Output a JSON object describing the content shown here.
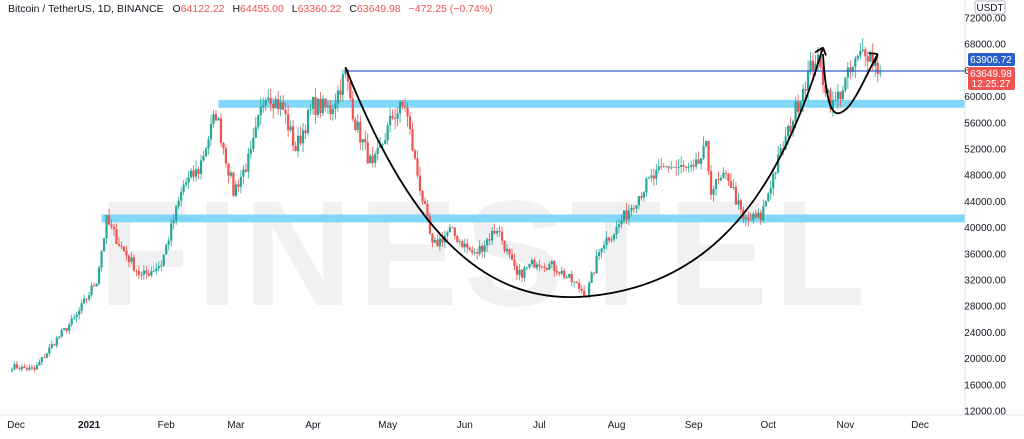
{
  "header": {
    "symbol": "Bitcoin / TetherUS, 1D, BINANCE",
    "open_label": "O",
    "open_value": "64122.22",
    "high_label": "H",
    "high_value": "64455.00",
    "low_label": "L",
    "low_value": "63360.22",
    "close_label": "C",
    "close_value": "63649.98",
    "change": "−472.25 (−0.74%)"
  },
  "watermark": "FINESTEL",
  "currency_label": "USDT",
  "badges": {
    "resistance_price": "63906.72",
    "last_price": "63649.98",
    "countdown": "12:25:27"
  },
  "colors": {
    "up": "#26a69a",
    "down": "#ef5350",
    "zone": "#7fd8f8",
    "hline": "#2a5fc7",
    "badge_resistance": "#2a5fc7",
    "badge_price": "#ef5350"
  },
  "chart_data": {
    "type": "candlestick",
    "ylim": [
      12000,
      72000
    ],
    "x_axis": [
      {
        "label": "Dec",
        "date": "2020-12-01",
        "bold": false
      },
      {
        "label": "2021",
        "date": "2021-01-01",
        "bold": true
      },
      {
        "label": "Feb",
        "date": "2021-02-01",
        "bold": false
      },
      {
        "label": "Mar",
        "date": "2021-03-01",
        "bold": false
      },
      {
        "label": "Apr",
        "date": "2021-04-01",
        "bold": false
      },
      {
        "label": "May",
        "date": "2021-05-01",
        "bold": false
      },
      {
        "label": "Jun",
        "date": "2021-06-01",
        "bold": false
      },
      {
        "label": "Jul",
        "date": "2021-07-01",
        "bold": false
      },
      {
        "label": "Aug",
        "date": "2021-08-01",
        "bold": false
      },
      {
        "label": "Sep",
        "date": "2021-09-01",
        "bold": false
      },
      {
        "label": "Oct",
        "date": "2021-10-01",
        "bold": false
      },
      {
        "label": "Nov",
        "date": "2021-11-01",
        "bold": false
      },
      {
        "label": "Dec",
        "date": "2021-12-01",
        "bold": false
      }
    ],
    "y_ticks": [
      "72000.00",
      "68000.00",
      "64000.00",
      "60000.00",
      "56000.00",
      "52000.00",
      "48000.00",
      "44000.00",
      "40000.00",
      "36000.00",
      "32000.00",
      "28000.00",
      "24000.00",
      "20000.00",
      "16000.00",
      "12000.00"
    ],
    "y_tick_values": [
      72000,
      68000,
      64000,
      60000,
      56000,
      52000,
      48000,
      44000,
      40000,
      36000,
      32000,
      28000,
      24000,
      20000,
      16000,
      12000
    ],
    "series": [
      {
        "date": "2020-12-01",
        "close": 18800
      },
      {
        "date": "2020-12-10",
        "close": 18300
      },
      {
        "date": "2020-12-18",
        "close": 22500
      },
      {
        "date": "2020-12-27",
        "close": 26500
      },
      {
        "date": "2021-01-04",
        "close": 32000
      },
      {
        "date": "2021-01-08",
        "close": 41000
      },
      {
        "date": "2021-01-14",
        "close": 37000
      },
      {
        "date": "2021-01-22",
        "close": 32500
      },
      {
        "date": "2021-01-30",
        "close": 34500
      },
      {
        "date": "2021-02-08",
        "close": 46500
      },
      {
        "date": "2021-02-14",
        "close": 48800
      },
      {
        "date": "2021-02-21",
        "close": 57500
      },
      {
        "date": "2021-02-28",
        "close": 45500
      },
      {
        "date": "2021-03-07",
        "close": 51000
      },
      {
        "date": "2021-03-13",
        "close": 61000
      },
      {
        "date": "2021-03-20",
        "close": 58000
      },
      {
        "date": "2021-03-25",
        "close": 52000
      },
      {
        "date": "2021-04-01",
        "close": 58700
      },
      {
        "date": "2021-04-08",
        "close": 58000
      },
      {
        "date": "2021-04-14",
        "close": 63500
      },
      {
        "date": "2021-04-18",
        "close": 56000
      },
      {
        "date": "2021-04-25",
        "close": 49000
      },
      {
        "date": "2021-05-03",
        "close": 57000
      },
      {
        "date": "2021-05-08",
        "close": 58800
      },
      {
        "date": "2021-05-12",
        "close": 50000
      },
      {
        "date": "2021-05-19",
        "close": 37000
      },
      {
        "date": "2021-05-26",
        "close": 39500
      },
      {
        "date": "2021-06-05",
        "close": 35800
      },
      {
        "date": "2021-06-14",
        "close": 40000
      },
      {
        "date": "2021-06-22",
        "close": 32500
      },
      {
        "date": "2021-06-30",
        "close": 35000
      },
      {
        "date": "2021-07-08",
        "close": 33800
      },
      {
        "date": "2021-07-20",
        "close": 29800
      },
      {
        "date": "2021-07-26",
        "close": 37500
      },
      {
        "date": "2021-08-01",
        "close": 39800
      },
      {
        "date": "2021-08-08",
        "close": 44000
      },
      {
        "date": "2021-08-14",
        "close": 47000
      },
      {
        "date": "2021-08-22",
        "close": 49500
      },
      {
        "date": "2021-09-01",
        "close": 48500
      },
      {
        "date": "2021-09-06",
        "close": 52000
      },
      {
        "date": "2021-09-08",
        "close": 46000
      },
      {
        "date": "2021-09-15",
        "close": 47800
      },
      {
        "date": "2021-09-21",
        "close": 41000
      },
      {
        "date": "2021-09-28",
        "close": 41600
      },
      {
        "date": "2021-10-03",
        "close": 48000
      },
      {
        "date": "2021-10-09",
        "close": 54500
      },
      {
        "date": "2021-10-15",
        "close": 61500
      },
      {
        "date": "2021-10-20",
        "close": 66000
      },
      {
        "date": "2021-10-27",
        "close": 58500
      },
      {
        "date": "2021-11-02",
        "close": 63000
      },
      {
        "date": "2021-11-09",
        "close": 67500
      },
      {
        "date": "2021-11-15",
        "close": 63650
      }
    ],
    "horizontal_lines": [
      {
        "price": 63906.72
      }
    ],
    "zones": [
      {
        "from": 58300,
        "to": 59500,
        "start_date": "2021-02-22"
      },
      {
        "from": 40800,
        "to": 42000,
        "start_date": "2021-01-06"
      }
    ],
    "cup_and_handle": {
      "cup": [
        {
          "date": "2021-04-14",
          "price": 64500
        },
        {
          "date": "2021-07-20",
          "price": 29500
        },
        {
          "date": "2021-10-23",
          "price": 67500
        }
      ],
      "handle": [
        {
          "date": "2021-10-23",
          "price": 66500
        },
        {
          "date": "2021-11-01",
          "price": 58000
        },
        {
          "date": "2021-11-14",
          "price": 66500
        }
      ]
    }
  }
}
